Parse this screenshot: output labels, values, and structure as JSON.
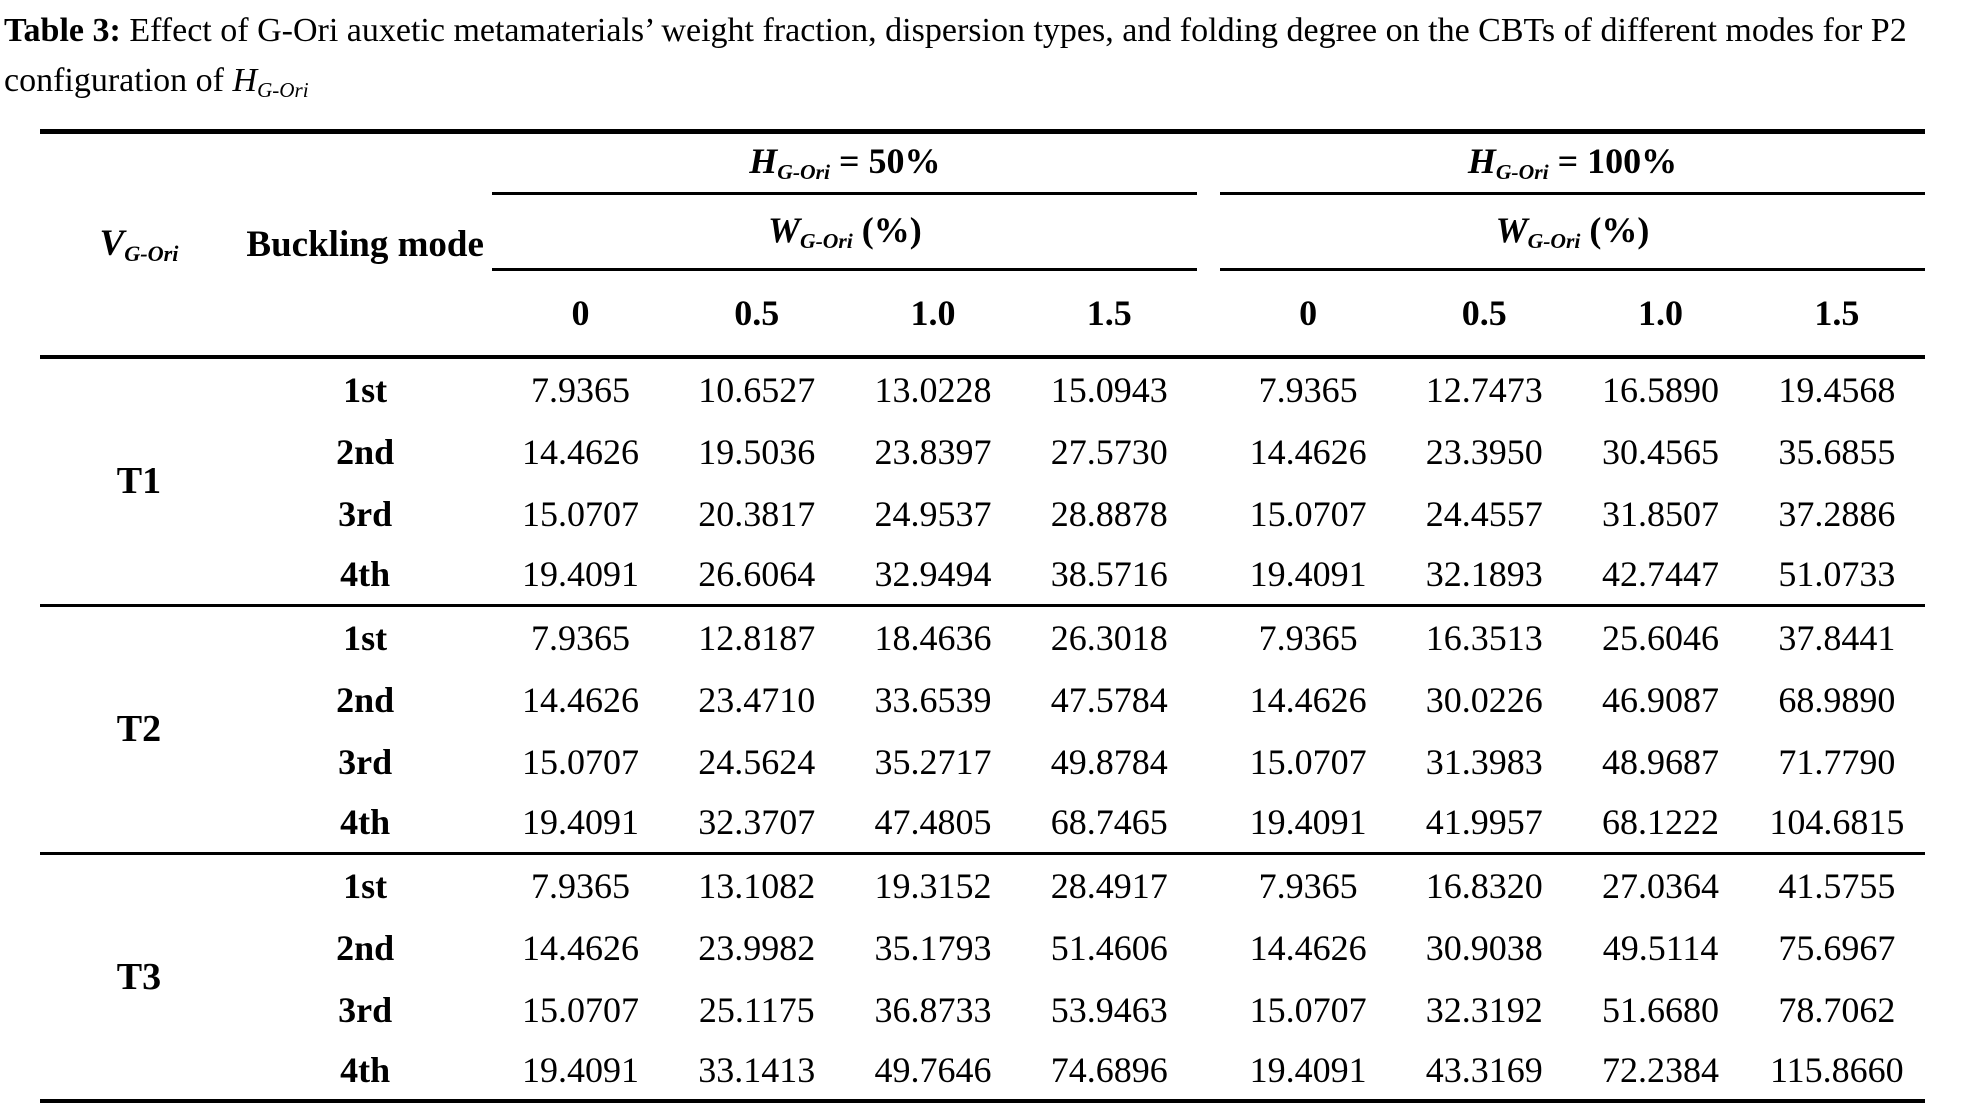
{
  "title": {
    "label": "Table 3:",
    "body": " Effect of G-Ori auxetic metamaterials’ weight fraction, dispersion types, and folding degree on the CBTs of different modes for P2 configuration of ",
    "var": "H",
    "var_sub": "G-Ori"
  },
  "table": {
    "v_head": {
      "var": "V",
      "sub": "G-Ori"
    },
    "mode_head": "Buckling mode",
    "groups": [
      {
        "var": "H",
        "sub": "G-Ori",
        "value": " = 50%",
        "w_var": "W",
        "w_sub": "G-Ori",
        "w_unit": " (%)",
        "cols": [
          "0",
          "0.5",
          "1.0",
          "1.5"
        ]
      },
      {
        "var": "H",
        "sub": "G-Ori",
        "value": " = 100%",
        "w_var": "W",
        "w_sub": "G-Ori",
        "w_unit": " (%)",
        "cols": [
          "0",
          "0.5",
          "1.0",
          "1.5"
        ]
      }
    ],
    "sections": [
      {
        "label": "T1",
        "rows": [
          {
            "mode": "1st",
            "values": [
              "7.9365",
              "10.6527",
              "13.0228",
              "15.0943",
              "7.9365",
              "12.7473",
              "16.5890",
              "19.4568"
            ]
          },
          {
            "mode": "2nd",
            "values": [
              "14.4626",
              "19.5036",
              "23.8397",
              "27.5730",
              "14.4626",
              "23.3950",
              "30.4565",
              "35.6855"
            ]
          },
          {
            "mode": "3rd",
            "values": [
              "15.0707",
              "20.3817",
              "24.9537",
              "28.8878",
              "15.0707",
              "24.4557",
              "31.8507",
              "37.2886"
            ]
          },
          {
            "mode": "4th",
            "values": [
              "19.4091",
              "26.6064",
              "32.9494",
              "38.5716",
              "19.4091",
              "32.1893",
              "42.7447",
              "51.0733"
            ]
          }
        ]
      },
      {
        "label": "T2",
        "rows": [
          {
            "mode": "1st",
            "values": [
              "7.9365",
              "12.8187",
              "18.4636",
              "26.3018",
              "7.9365",
              "16.3513",
              "25.6046",
              "37.8441"
            ]
          },
          {
            "mode": "2nd",
            "values": [
              "14.4626",
              "23.4710",
              "33.6539",
              "47.5784",
              "14.4626",
              "30.0226",
              "46.9087",
              "68.9890"
            ]
          },
          {
            "mode": "3rd",
            "values": [
              "15.0707",
              "24.5624",
              "35.2717",
              "49.8784",
              "15.0707",
              "31.3983",
              "48.9687",
              "71.7790"
            ]
          },
          {
            "mode": "4th",
            "values": [
              "19.4091",
              "32.3707",
              "47.4805",
              "68.7465",
              "19.4091",
              "41.9957",
              "68.1222",
              "104.6815"
            ]
          }
        ]
      },
      {
        "label": "T3",
        "rows": [
          {
            "mode": "1st",
            "values": [
              "7.9365",
              "13.1082",
              "19.3152",
              "28.4917",
              "7.9365",
              "16.8320",
              "27.0364",
              "41.5755"
            ]
          },
          {
            "mode": "2nd",
            "values": [
              "14.4626",
              "23.9982",
              "35.1793",
              "51.4606",
              "14.4626",
              "30.9038",
              "49.5114",
              "75.6967"
            ]
          },
          {
            "mode": "3rd",
            "values": [
              "15.0707",
              "25.1175",
              "36.8733",
              "53.9463",
              "15.0707",
              "32.3192",
              "51.6680",
              "78.7062"
            ]
          },
          {
            "mode": "4th",
            "values": [
              "19.4091",
              "33.1413",
              "49.7646",
              "74.6896",
              "19.4091",
              "43.3169",
              "72.2384",
              "115.8660"
            ]
          }
        ]
      }
    ]
  }
}
